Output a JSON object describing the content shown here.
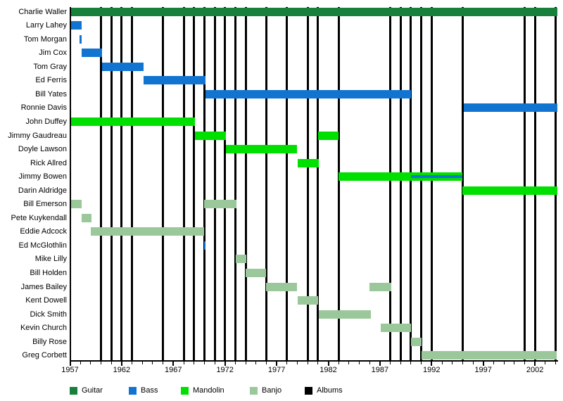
{
  "chart_data": {
    "type": "bar",
    "variant": "gantt-membership-timeline",
    "title": "",
    "xlabel": "",
    "ylabel": "",
    "grid": false,
    "legend_position": "bottom",
    "x_axis": {
      "min": 1957,
      "max": 2004.15,
      "major_ticks": [
        1957,
        1962,
        1967,
        1972,
        1977,
        1982,
        1987,
        1992,
        1997,
        2002
      ],
      "minor_tick_every": 1
    },
    "colors": {
      "guitar": "#17813c",
      "bass": "#1274d1",
      "mandolin": "#00e000",
      "banjo": "#9bc89b",
      "albums": "#000000"
    },
    "members": [
      {
        "name": "Charlie Waller",
        "instrument": "guitar",
        "stints": [
          [
            1957.1,
            2004.15
          ]
        ]
      },
      {
        "name": "Larry Lahey",
        "instrument": "bass",
        "stints": [
          [
            1957.1,
            1958.1
          ]
        ]
      },
      {
        "name": "Tom Morgan",
        "instrument": "bass",
        "stints": [
          [
            1957.9,
            1958.1
          ]
        ]
      },
      {
        "name": "Jim Cox",
        "instrument": "bass",
        "stints": [
          [
            1958.1,
            1960.1
          ]
        ]
      },
      {
        "name": "Tom Gray",
        "instrument": "bass",
        "stints": [
          [
            1960.1,
            1964.1
          ]
        ]
      },
      {
        "name": "Ed Ferris",
        "instrument": "bass",
        "stints": [
          [
            1964.1,
            1970.1
          ]
        ]
      },
      {
        "name": "Bill Yates",
        "instrument": "bass",
        "stints": [
          [
            1970.1,
            1990.0
          ]
        ]
      },
      {
        "name": "Ronnie Davis",
        "instrument": "bass",
        "stints": [
          [
            1995.1,
            2004.15
          ]
        ]
      },
      {
        "name": "John Duffey",
        "instrument": "mandolin",
        "stints": [
          [
            1957.1,
            1969.1
          ]
        ]
      },
      {
        "name": "Jimmy Gaudreau",
        "instrument": "mandolin",
        "stints": [
          [
            1969.1,
            1972.1
          ],
          [
            1981.0,
            1983.0
          ]
        ]
      },
      {
        "name": "Doyle Lawson",
        "instrument": "mandolin",
        "stints": [
          [
            1972.1,
            1979.0
          ]
        ]
      },
      {
        "name": "Rick Allred",
        "instrument": "mandolin",
        "stints": [
          [
            1979.0,
            1981.1
          ]
        ]
      },
      {
        "name": "Jimmy Bowen",
        "instrument": "mandolin",
        "stints": [
          [
            1983.0,
            1995.0
          ]
        ],
        "overlay": {
          "instrument": "bass",
          "stints": [
            [
              1990.0,
              1995.0
            ]
          ]
        }
      },
      {
        "name": "Darin Aldridge",
        "instrument": "mandolin",
        "stints": [
          [
            1995.0,
            2004.15
          ]
        ]
      },
      {
        "name": "Bill Emerson",
        "instrument": "banjo",
        "stints": [
          [
            1957.1,
            1958.1
          ],
          [
            1970.0,
            1973.1
          ]
        ]
      },
      {
        "name": "Pete Kuykendall",
        "instrument": "banjo",
        "stints": [
          [
            1958.1,
            1959.1
          ]
        ]
      },
      {
        "name": "Eddie Adcock",
        "instrument": "banjo",
        "stints": [
          [
            1959.0,
            1970.0
          ]
        ]
      },
      {
        "name": "Ed McGlothlin",
        "instrument": "bass",
        "stints": [
          [
            1969.95,
            1970.15
          ]
        ]
      },
      {
        "name": "Mike Lilly",
        "instrument": "banjo",
        "stints": [
          [
            1973.05,
            1974.1
          ]
        ]
      },
      {
        "name": "Bill Holden",
        "instrument": "banjo",
        "stints": [
          [
            1974.0,
            1976.0
          ]
        ]
      },
      {
        "name": "James Bailey",
        "instrument": "banjo",
        "stints": [
          [
            1976.0,
            1979.0
          ],
          [
            1986.0,
            1988.1
          ]
        ]
      },
      {
        "name": "Kent Dowell",
        "instrument": "banjo",
        "stints": [
          [
            1979.0,
            1981.0
          ]
        ]
      },
      {
        "name": "Dick Smith",
        "instrument": "banjo",
        "stints": [
          [
            1981.1,
            1986.1
          ]
        ]
      },
      {
        "name": "Kevin Church",
        "instrument": "banjo",
        "stints": [
          [
            1987.1,
            1990.0
          ]
        ]
      },
      {
        "name": "Billy Rose",
        "instrument": "banjo",
        "stints": [
          [
            1990.0,
            1991.0
          ]
        ]
      },
      {
        "name": "Greg Corbett",
        "instrument": "banjo",
        "stints": [
          [
            1991.0,
            2004.1
          ]
        ]
      }
    ],
    "album_years": [
      1960,
      1961,
      1962,
      1963,
      1966,
      1968,
      1969,
      1970,
      1971,
      1972,
      1973,
      1974,
      1976,
      1978,
      1980,
      1981,
      1983,
      1988,
      1989,
      1990,
      1991,
      1992,
      1995,
      2001,
      2002,
      2004
    ],
    "legend": [
      {
        "label": "Guitar",
        "color_key": "guitar"
      },
      {
        "label": "Bass",
        "color_key": "bass"
      },
      {
        "label": "Mandolin",
        "color_key": "mandolin"
      },
      {
        "label": "Banjo",
        "color_key": "banjo"
      },
      {
        "label": "Albums",
        "color_key": "albums"
      }
    ]
  }
}
